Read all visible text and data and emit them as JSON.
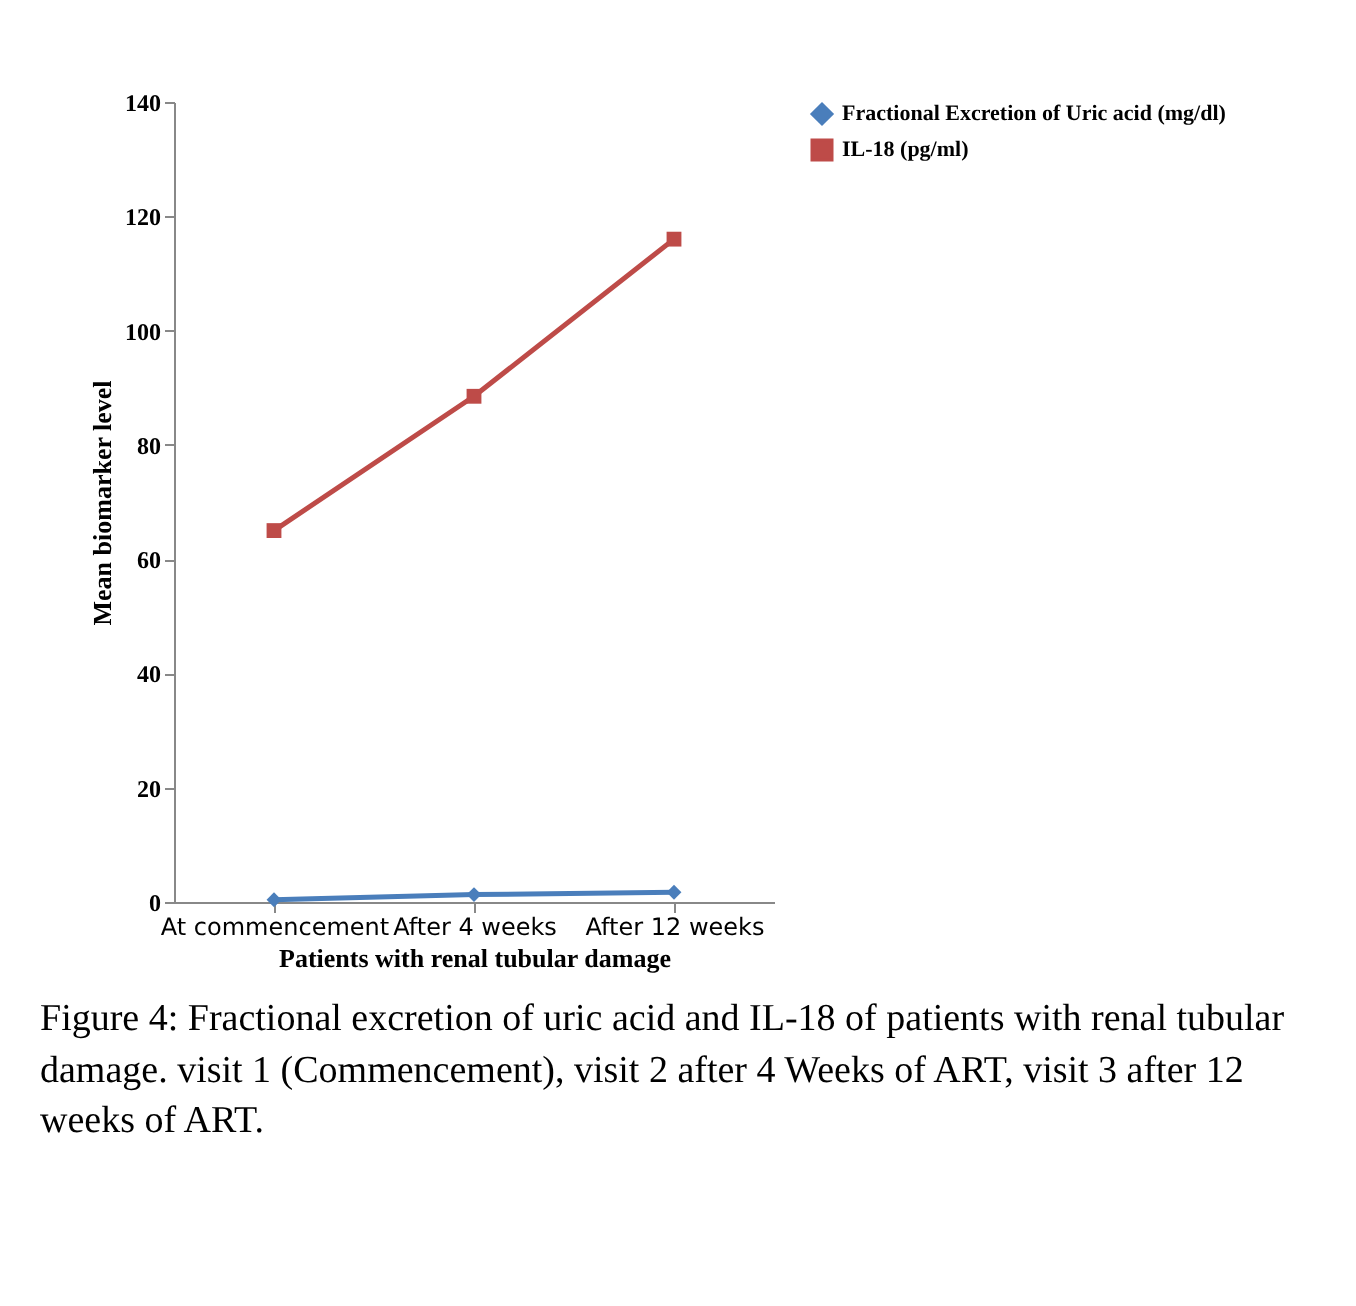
{
  "chart_data": {
    "type": "line",
    "xlabel": "Patients with renal tubular damage",
    "ylabel": "Mean biomarker level",
    "categories": [
      "At commencement",
      "After 4 weeks",
      "After 12 weeks"
    ],
    "series": [
      {
        "name": "Fractional Excretion of Uric acid (mg/dl)",
        "color": "#4a7ebb",
        "marker": "diamond",
        "values": [
          0.4,
          1.3,
          1.7
        ]
      },
      {
        "name": "IL-18 (pg/ml)",
        "color": "#be4b48",
        "marker": "square",
        "values": [
          65,
          88.5,
          116
        ]
      }
    ],
    "ylim": [
      0,
      140
    ],
    "yticks": [
      0,
      20,
      40,
      60,
      80,
      100,
      120,
      140
    ],
    "grid": false,
    "legend": "right",
    "annotations": [
      "Figure 4: Fractional excretion of uric acid and IL-18 of patients with renal tubular damage. visit 1 (Commencement), visit 2 after 4 Weeks of ART, visit 3 after 12 weeks of ART."
    ]
  }
}
